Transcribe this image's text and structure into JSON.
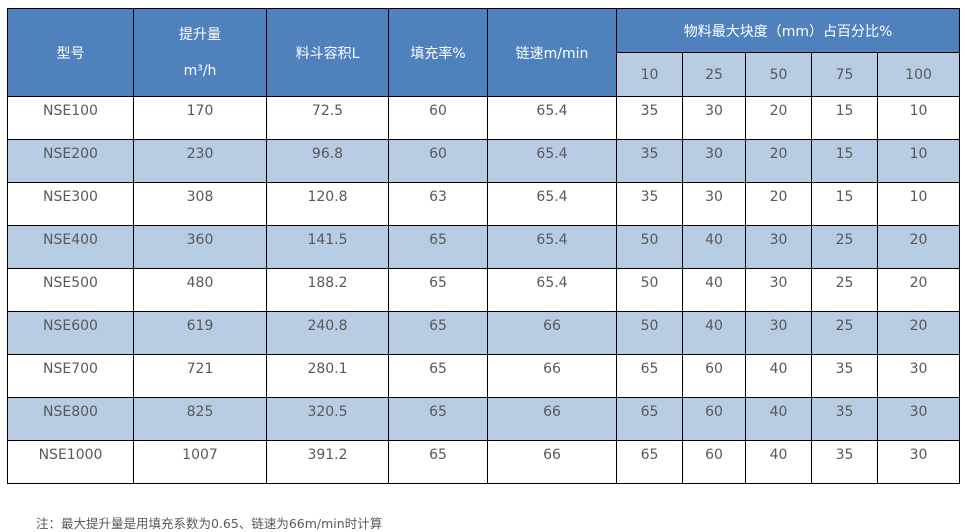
{
  "table": {
    "headers": {
      "model": "型号",
      "capacity_line1": "提升量",
      "capacity_line2": "m³/h",
      "bucket_volume": "料斗容积L",
      "fill_rate": "填充率%",
      "chain_speed": "链速m/min",
      "lump_group": "物料最大块度（mm）占百分比%",
      "lump_sizes": [
        "10",
        "25",
        "50",
        "75",
        "100"
      ]
    },
    "rows": [
      [
        "NSE100",
        "170",
        "72.5",
        "60",
        "65.4",
        "35",
        "30",
        "20",
        "15",
        "10"
      ],
      [
        "NSE200",
        "230",
        "96.8",
        "60",
        "65.4",
        "35",
        "30",
        "20",
        "15",
        "10"
      ],
      [
        "NSE300",
        "308",
        "120.8",
        "63",
        "65.4",
        "35",
        "30",
        "20",
        "15",
        "10"
      ],
      [
        "NSE400",
        "360",
        "141.5",
        "65",
        "65.4",
        "50",
        "40",
        "30",
        "25",
        "20"
      ],
      [
        "NSE500",
        "480",
        "188.2",
        "65",
        "65.4",
        "50",
        "40",
        "30",
        "25",
        "20"
      ],
      [
        "NSE600",
        "619",
        "240.8",
        "65",
        "66",
        "50",
        "40",
        "30",
        "25",
        "20"
      ],
      [
        "NSE700",
        "721",
        "280.1",
        "65",
        "66",
        "65",
        "60",
        "40",
        "35",
        "30"
      ],
      [
        "NSE800",
        "825",
        "320.5",
        "65",
        "66",
        "65",
        "60",
        "40",
        "35",
        "30"
      ],
      [
        "NSE1000",
        "1007",
        "391.2",
        "65",
        "66",
        "65",
        "60",
        "40",
        "35",
        "30"
      ]
    ]
  },
  "note": "注：最大提升量是用填充系数为0.65、链速为66m/min时计算",
  "colors": {
    "header": "#4f81bd",
    "alt_row": "#b8cce4",
    "text": "#595959"
  }
}
